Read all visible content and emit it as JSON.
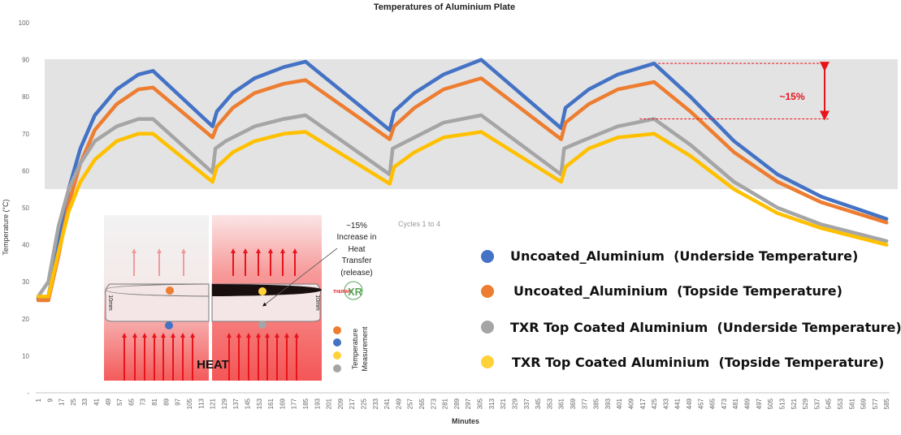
{
  "chart_data": {
    "type": "line",
    "title": "Temperatures of Aluminium Plate",
    "xlabel": "Minutes",
    "ylabel": "Temperature (°C)",
    "xlim": [
      1,
      585
    ],
    "ylim": [
      0,
      100
    ],
    "yticks": [
      "-",
      "10",
      "20",
      "30",
      "40",
      "50",
      "60",
      "70",
      "80",
      "90",
      "100"
    ],
    "xticks": [
      1,
      9,
      17,
      25,
      33,
      41,
      49,
      57,
      65,
      73,
      81,
      89,
      97,
      105,
      113,
      121,
      129,
      137,
      145,
      153,
      161,
      169,
      177,
      185,
      193,
      201,
      209,
      217,
      225,
      233,
      241,
      249,
      257,
      265,
      273,
      281,
      289,
      297,
      305,
      313,
      321,
      329,
      337,
      345,
      353,
      361,
      369,
      377,
      385,
      393,
      401,
      409,
      417,
      425,
      433,
      441,
      449,
      457,
      465,
      473,
      481,
      489,
      497,
      505,
      513,
      521,
      529,
      537,
      545,
      553,
      561,
      569,
      577,
      585
    ],
    "grid": false,
    "legend_placement": "bottom-right",
    "series": [
      {
        "name": "Uncoated_Aluminium  (Underside Temperature)",
        "color": "#4472c4",
        "points": [
          [
            1,
            25.5
          ],
          [
            8,
            26
          ],
          [
            15,
            40
          ],
          [
            22,
            55
          ],
          [
            30,
            66
          ],
          [
            40,
            75
          ],
          [
            55,
            82
          ],
          [
            70,
            86
          ],
          [
            80,
            87
          ],
          [
            121,
            72
          ],
          [
            124,
            76
          ],
          [
            135,
            81
          ],
          [
            150,
            85
          ],
          [
            170,
            88
          ],
          [
            185,
            89.5
          ],
          [
            243,
            71
          ],
          [
            246,
            76
          ],
          [
            260,
            81
          ],
          [
            280,
            86
          ],
          [
            306,
            90
          ],
          [
            361,
            71.5
          ],
          [
            364,
            77
          ],
          [
            380,
            82
          ],
          [
            400,
            86
          ],
          [
            425,
            89
          ],
          [
            450,
            80
          ],
          [
            480,
            68
          ],
          [
            510,
            59
          ],
          [
            540,
            53
          ],
          [
            585,
            47
          ]
        ]
      },
      {
        "name": "Uncoated_Aluminium  (Topside Temperature)",
        "color": "#ed7d31",
        "points": [
          [
            1,
            25
          ],
          [
            8,
            25
          ],
          [
            15,
            37
          ],
          [
            22,
            51
          ],
          [
            30,
            62
          ],
          [
            40,
            71
          ],
          [
            55,
            78
          ],
          [
            70,
            82
          ],
          [
            80,
            82.5
          ],
          [
            121,
            69
          ],
          [
            124,
            72
          ],
          [
            135,
            77
          ],
          [
            150,
            81
          ],
          [
            170,
            83.5
          ],
          [
            185,
            84.5
          ],
          [
            243,
            68.5
          ],
          [
            246,
            72
          ],
          [
            260,
            77
          ],
          [
            280,
            82
          ],
          [
            306,
            85
          ],
          [
            361,
            68.5
          ],
          [
            364,
            73
          ],
          [
            380,
            78
          ],
          [
            400,
            82
          ],
          [
            425,
            84
          ],
          [
            450,
            76
          ],
          [
            480,
            65
          ],
          [
            510,
            57
          ],
          [
            540,
            51.5
          ],
          [
            585,
            46
          ]
        ]
      },
      {
        "name": "TXR Top Coated Aluminium  (Underside Temperature)",
        "color": "#a5a5a5",
        "points": [
          [
            1,
            26
          ],
          [
            8,
            30
          ],
          [
            15,
            45
          ],
          [
            22,
            55
          ],
          [
            30,
            62
          ],
          [
            40,
            68
          ],
          [
            55,
            72
          ],
          [
            70,
            74
          ],
          [
            80,
            74
          ],
          [
            121,
            59.5
          ],
          [
            123,
            66
          ],
          [
            130,
            68
          ],
          [
            150,
            72
          ],
          [
            170,
            74
          ],
          [
            185,
            75
          ],
          [
            243,
            59
          ],
          [
            245,
            66
          ],
          [
            255,
            68
          ],
          [
            280,
            73
          ],
          [
            306,
            75
          ],
          [
            361,
            59
          ],
          [
            363,
            66
          ],
          [
            375,
            68
          ],
          [
            400,
            72
          ],
          [
            425,
            74
          ],
          [
            450,
            67
          ],
          [
            480,
            57
          ],
          [
            510,
            50
          ],
          [
            540,
            45.5
          ],
          [
            585,
            41
          ]
        ]
      },
      {
        "name": "TXR Top Coated Aluminium  (Topside Temperature)",
        "color": "#ffc000",
        "points": [
          [
            1,
            26
          ],
          [
            8,
            26
          ],
          [
            15,
            38
          ],
          [
            22,
            49
          ],
          [
            30,
            57
          ],
          [
            40,
            63
          ],
          [
            55,
            68
          ],
          [
            70,
            70
          ],
          [
            80,
            70
          ],
          [
            121,
            57
          ],
          [
            124,
            61
          ],
          [
            135,
            65
          ],
          [
            150,
            68
          ],
          [
            170,
            70
          ],
          [
            185,
            70.5
          ],
          [
            243,
            56.5
          ],
          [
            246,
            61
          ],
          [
            260,
            65
          ],
          [
            280,
            69
          ],
          [
            306,
            70.5
          ],
          [
            361,
            57
          ],
          [
            364,
            61
          ],
          [
            380,
            66
          ],
          [
            400,
            69
          ],
          [
            425,
            70
          ],
          [
            450,
            64
          ],
          [
            480,
            55
          ],
          [
            510,
            48.5
          ],
          [
            540,
            44.5
          ],
          [
            585,
            40
          ]
        ]
      }
    ],
    "annotations": {
      "difference_label": "~15%",
      "difference_color": "#e8141b",
      "cycles_label": "Cycles 1 to 4"
    }
  },
  "inset": {
    "increase_text": [
      "~15%",
      "Increase in",
      "Heat",
      "Transfer",
      "(release)"
    ],
    "thickness_label": "10mm",
    "heat_label": "HEAT",
    "logo_text": [
      "THERMAL",
      "XR"
    ],
    "measurement_label": [
      "Temperature",
      "Measurement"
    ]
  }
}
